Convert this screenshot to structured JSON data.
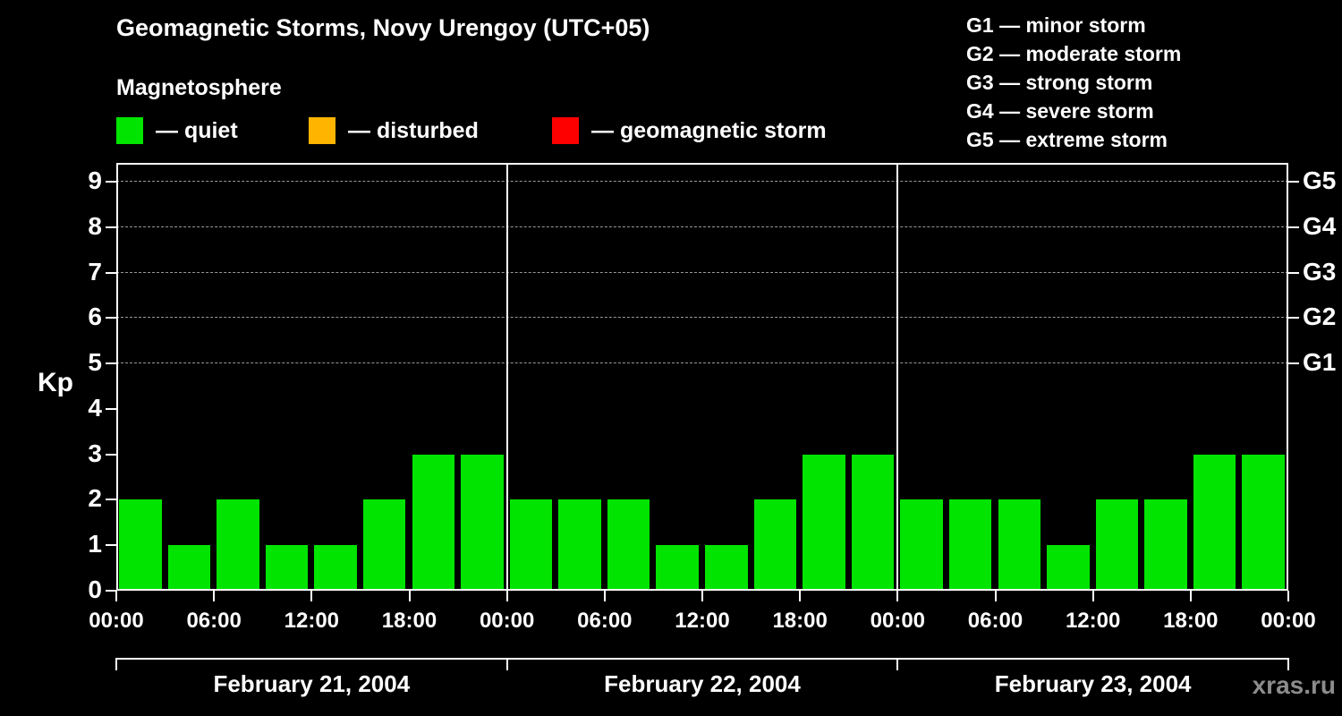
{
  "title": "Geomagnetic Storms, Novy Urengoy (UTC+05)",
  "legend": {
    "heading": "Magnetosphere",
    "items": [
      {
        "label": "— quiet",
        "color": "#00e400"
      },
      {
        "label": "— disturbed",
        "color": "#ffb400"
      },
      {
        "label": "— geomagnetic storm",
        "color": "#ff0000"
      }
    ]
  },
  "g_legend": [
    "G1 — minor storm",
    "G2 — moderate storm",
    "G3 — strong storm",
    "G4 — severe storm",
    "G5 — extreme storm"
  ],
  "watermark": "xras.ru",
  "chart_data": {
    "type": "bar",
    "title": "Geomagnetic Storms, Novy Urengoy (UTC+05)",
    "ylabel": "Kp",
    "ylim": [
      0,
      9.4
    ],
    "yticks": [
      0,
      1,
      2,
      3,
      4,
      5,
      6,
      7,
      8,
      9
    ],
    "grid_levels": [
      5,
      6,
      7,
      8,
      9
    ],
    "right_labels": [
      {
        "value": 5,
        "label": "G1"
      },
      {
        "value": 6,
        "label": "G2"
      },
      {
        "value": 7,
        "label": "G3"
      },
      {
        "value": 8,
        "label": "G4"
      },
      {
        "value": 9,
        "label": "G5"
      }
    ],
    "bar_color": "#00e400",
    "bar_interval_hours": 3,
    "days": [
      {
        "date": "February 21, 2004",
        "values": [
          2,
          1,
          2,
          1,
          1,
          2,
          3,
          3
        ]
      },
      {
        "date": "February 22, 2004",
        "values": [
          2,
          2,
          2,
          1,
          1,
          2,
          3,
          3
        ]
      },
      {
        "date": "February 23, 2004",
        "values": [
          2,
          2,
          2,
          1,
          2,
          2,
          3,
          3
        ]
      }
    ],
    "x_tick_labels": [
      "00:00",
      "06:00",
      "12:00",
      "18:00",
      "00:00",
      "06:00",
      "12:00",
      "18:00",
      "00:00",
      "06:00",
      "12:00",
      "18:00",
      "00:00"
    ],
    "legend_position": "top",
    "grid": "dashed horizontal at storm levels"
  }
}
